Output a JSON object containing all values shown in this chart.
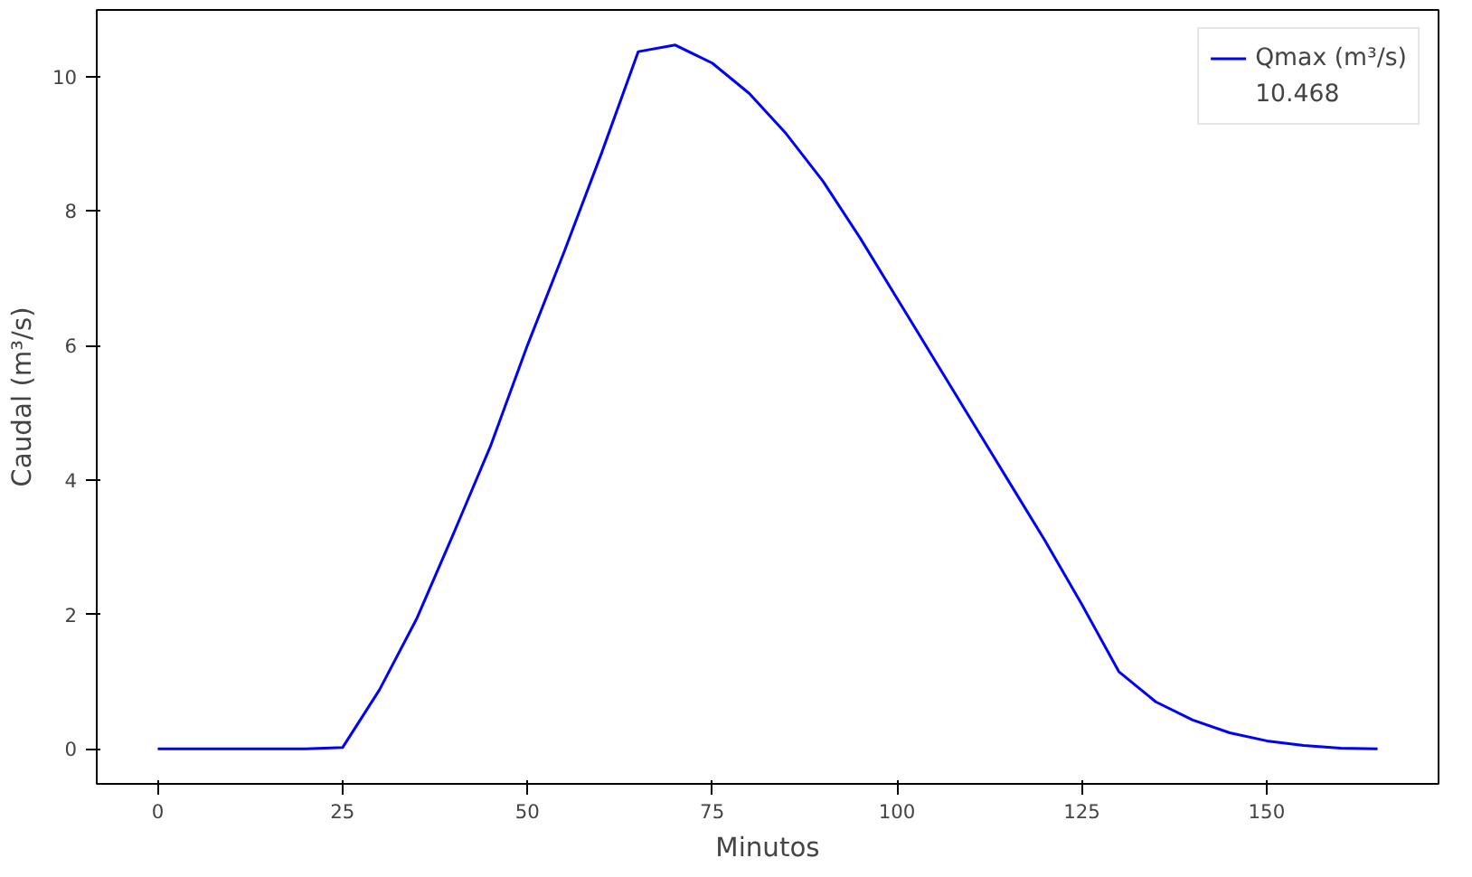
{
  "chart_data": {
    "type": "line",
    "xlabel": "Minutos",
    "ylabel": "Caudal (m³/s)",
    "x": [
      0,
      5,
      10,
      15,
      20,
      25,
      30,
      35,
      40,
      45,
      50,
      55,
      60,
      65,
      70,
      75,
      80,
      85,
      90,
      95,
      100,
      105,
      110,
      115,
      120,
      125,
      130,
      135,
      140,
      145,
      150,
      155,
      160,
      165
    ],
    "series": [
      {
        "name": "Qmax (m³/s)",
        "color": "#0000ff",
        "values": [
          0,
          0,
          0,
          0,
          0,
          0.02,
          0.88,
          1.93,
          3.2,
          4.5,
          6.0,
          7.4,
          8.85,
          10.37,
          10.468,
          10.2,
          9.75,
          9.15,
          8.44,
          7.6,
          6.7,
          5.8,
          4.9,
          4.0,
          3.1,
          2.15,
          1.15,
          0.7,
          0.43,
          0.24,
          0.12,
          0.05,
          0.01,
          0
        ]
      }
    ],
    "annotations": [
      "10.468"
    ],
    "xlim": [
      -8.25,
      173.25
    ],
    "ylim": [
      -0.52,
      10.99
    ],
    "xticks": [
      0,
      25,
      50,
      75,
      100,
      125,
      150
    ],
    "yticks": [
      0,
      2,
      4,
      6,
      8,
      10
    ],
    "grid": false,
    "legend": "top right",
    "marker": "none",
    "line_style": "solid"
  }
}
